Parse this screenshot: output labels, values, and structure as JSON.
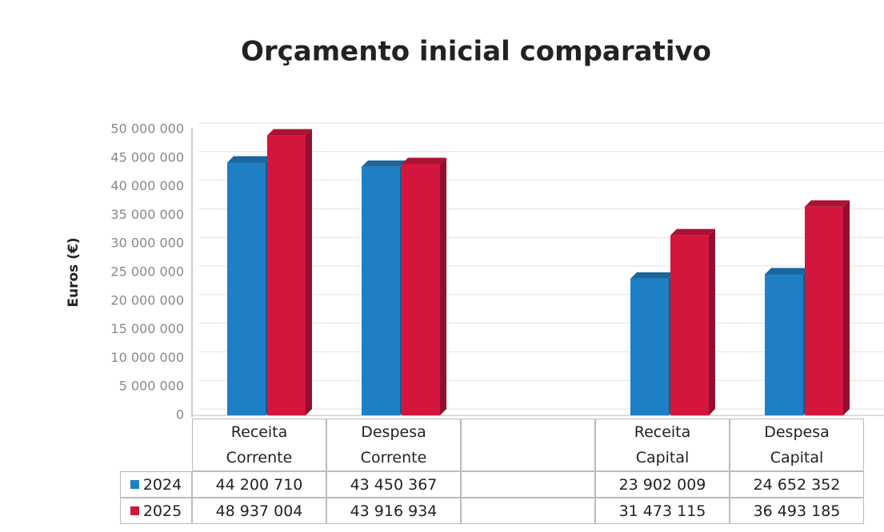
{
  "chart_data": {
    "type": "bar3d",
    "title": "Orçamento inicial comparativo",
    "ylabel": "Euros (€)",
    "categories": [
      "Receita Corrente",
      "Despesa Corrente",
      null,
      "Receita Capital",
      "Despesa Capital"
    ],
    "series": [
      {
        "name": "2024",
        "color": "#1f7fc4",
        "values": [
          44200710,
          43450367,
          null,
          23902009,
          24652352
        ],
        "value_labels": [
          "44 200 710",
          "43 450 367",
          null,
          "23 902 009",
          "24 652 352"
        ]
      },
      {
        "name": "2025",
        "color": "#d4163f",
        "values": [
          48937004,
          43916934,
          null,
          31473115,
          36493185
        ],
        "value_labels": [
          "48 937 004",
          "43 916 934",
          null,
          "31 473 115",
          "36 493 185"
        ]
      }
    ],
    "ylim": [
      0,
      50000000
    ],
    "yticks": [
      0,
      {
        "value": 5000000,
        "label": "5 000 000"
      },
      {
        "value": 10000000,
        "label": "10 000 000"
      },
      {
        "value": 15000000,
        "label": "15 000 000"
      },
      {
        "value": 20000000,
        "label": "20 000 000"
      },
      {
        "value": 25000000,
        "label": "25 000 000"
      },
      {
        "value": 30000000,
        "label": "30 000 000"
      },
      {
        "value": 35000000,
        "label": "35 000 000"
      },
      {
        "value": 40000000,
        "label": "40 000 000"
      },
      {
        "value": 45000000,
        "label": "45 000 000"
      },
      {
        "value": 50000000,
        "label": "50 000 000"
      }
    ],
    "grid": true,
    "data_table": true
  }
}
